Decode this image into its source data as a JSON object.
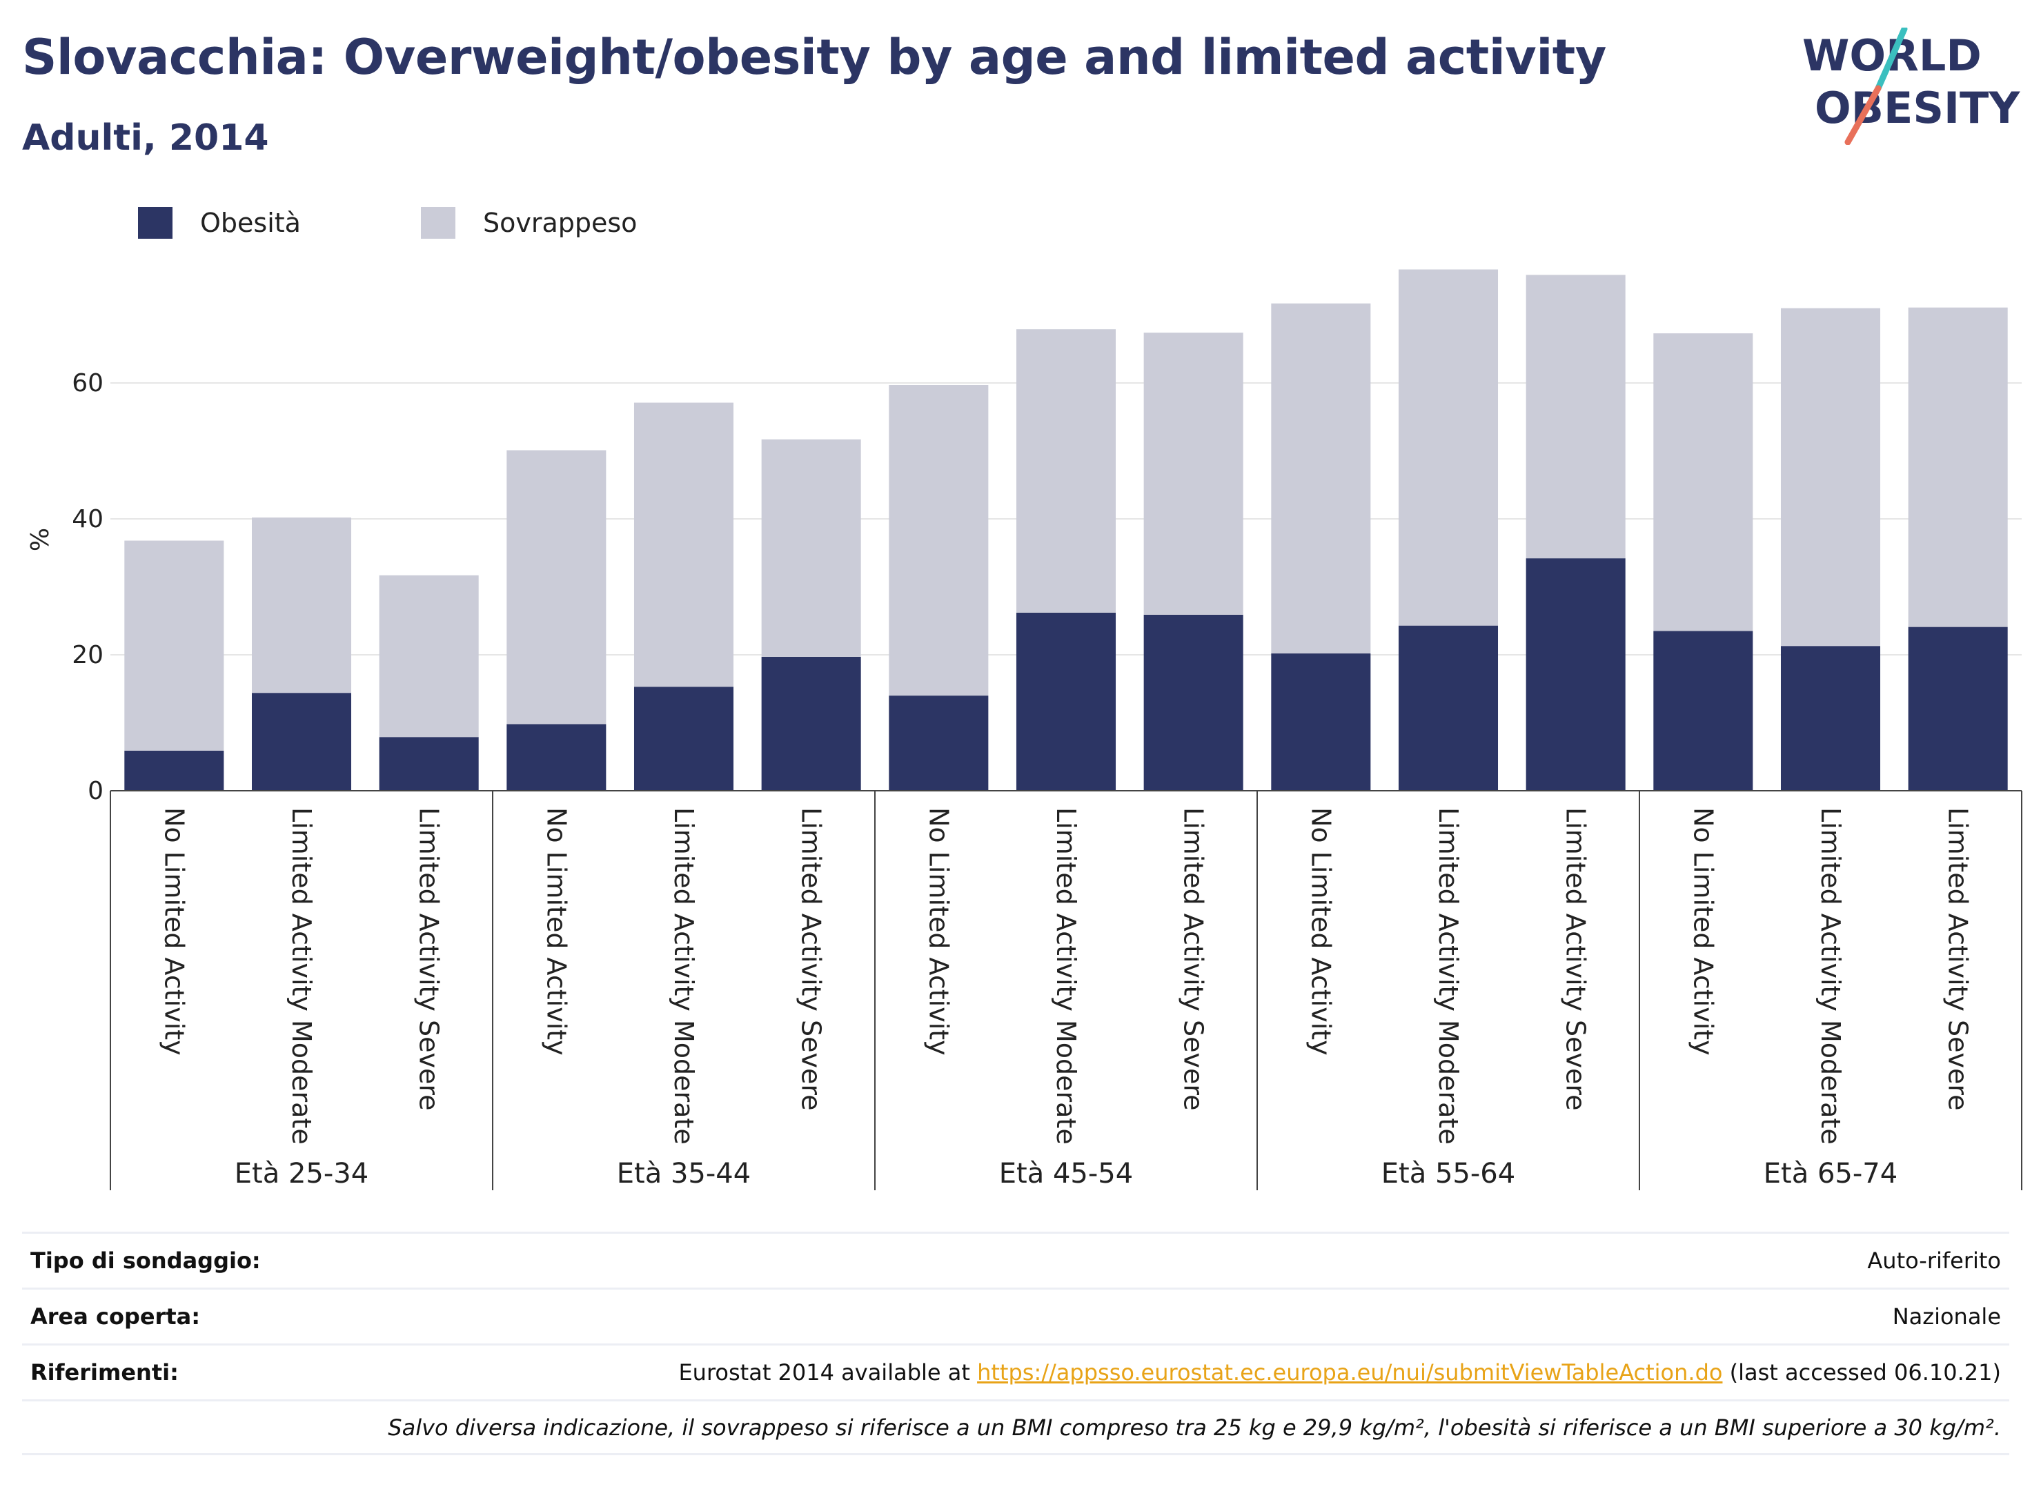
{
  "header": {
    "title": "Slovacchia: Overweight/obesity by age and limited activity",
    "subtitle": "Adulti, 2014"
  },
  "logo": {
    "line1": "WORLD",
    "line2": "OBESITY",
    "text_color": "#2c3564",
    "slash_colors": [
      "#3bbfbf",
      "#e8705a"
    ]
  },
  "colors": {
    "obesity": "#2c3564",
    "overweight": "#cbccd8",
    "grid": "#e6e6e6",
    "axis": "#444444"
  },
  "chart_data": {
    "type": "bar",
    "stacked": true,
    "ylabel": "%",
    "yticks": [
      0,
      20,
      40,
      60
    ],
    "ylim": [
      0,
      80
    ],
    "legend_position": "top-left",
    "legend": [
      "Obesità",
      "Sovrappeso"
    ],
    "groups": [
      {
        "label": "Età 25-34",
        "categories": [
          "No Limited Activity",
          "Limited Activity Moderate",
          "Limited Activity Severe"
        ]
      },
      {
        "label": "Età 35-44",
        "categories": [
          "No Limited Activity",
          "Limited Activity Moderate",
          "Limited Activity Severe"
        ]
      },
      {
        "label": "Età 45-54",
        "categories": [
          "No Limited Activity",
          "Limited Activity Moderate",
          "Limited Activity Severe"
        ]
      },
      {
        "label": "Età 55-64",
        "categories": [
          "No Limited Activity",
          "Limited Activity Moderate",
          "Limited Activity Severe"
        ]
      },
      {
        "label": "Età 65-74",
        "categories": [
          "No Limited Activity",
          "Limited Activity Moderate",
          "Limited Activity Severe"
        ]
      }
    ],
    "series": [
      {
        "name": "Obesità",
        "values": [
          5.9,
          14.4,
          7.9,
          9.8,
          15.3,
          19.7,
          14.0,
          26.2,
          25.9,
          20.2,
          24.3,
          34.2,
          23.5,
          21.3,
          24.1
        ]
      },
      {
        "name": "Sovrappeso",
        "values": [
          30.9,
          25.8,
          23.8,
          40.3,
          41.8,
          32.0,
          45.7,
          41.7,
          41.5,
          51.5,
          52.4,
          41.7,
          43.8,
          49.7,
          47.0
        ]
      }
    ]
  },
  "info": {
    "rows": [
      {
        "label": "Tipo di sondaggio:",
        "value": "Auto-riferito"
      },
      {
        "label": "Area coperta:",
        "value": "Nazionale"
      },
      {
        "label": "Riferimenti:",
        "value_prefix": "Eurostat 2014 available at ",
        "link": "https://appsso.eurostat.ec.europa.eu/nui/submitViewTableAction.do",
        "value_suffix": " (last accessed 06.10.21)"
      }
    ],
    "note": "Salvo diversa indicazione, il sovrappeso si riferisce a un BMI compreso tra 25 kg e 29,9 kg/m², l'obesità si riferisce a un BMI superiore a 30 kg/m²."
  }
}
